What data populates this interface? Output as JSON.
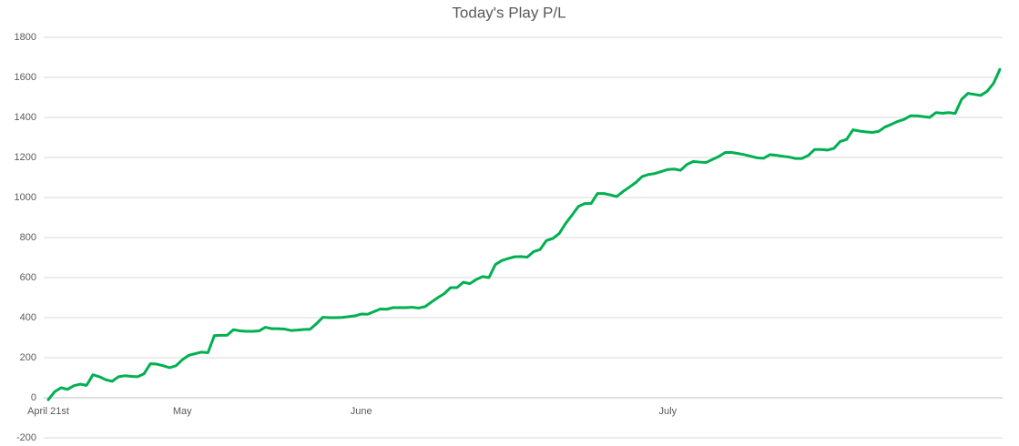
{
  "chart_data": {
    "type": "line",
    "title": "Today's Play P/L",
    "categories": [
      "April 21st",
      null,
      null,
      null,
      null,
      null,
      null,
      null,
      null,
      null,
      null,
      null,
      null,
      null,
      null,
      null,
      null,
      null,
      null,
      null,
      null,
      "May",
      null,
      null,
      null,
      null,
      null,
      null,
      null,
      null,
      null,
      null,
      null,
      null,
      null,
      null,
      null,
      null,
      null,
      null,
      null,
      null,
      null,
      null,
      null,
      null,
      null,
      null,
      null,
      "June",
      null,
      null,
      null,
      null,
      null,
      null,
      null,
      null,
      null,
      null,
      null,
      null,
      null,
      null,
      null,
      null,
      null,
      null,
      null,
      null,
      null,
      null,
      null,
      null,
      null,
      null,
      null,
      null,
      null,
      null,
      null,
      null,
      null,
      null,
      null,
      null,
      null,
      null,
      null,
      null,
      null,
      null,
      null,
      null,
      null,
      null,
      null,
      "July",
      null,
      null,
      null,
      null,
      null,
      null,
      null,
      null,
      null,
      null,
      null,
      null,
      null,
      null,
      null,
      null,
      null,
      null,
      null,
      null,
      null,
      null,
      null,
      null,
      null,
      null,
      null,
      null,
      null,
      null,
      null,
      null,
      null,
      null,
      null,
      null,
      null,
      null,
      null,
      null,
      null,
      null,
      null,
      null,
      null,
      null,
      null,
      null,
      null,
      null,
      null,
      null
    ],
    "series": [
      {
        "name": "P/L",
        "color": "#00b050",
        "values": [
          -10,
          30,
          50,
          42,
          60,
          68,
          62,
          115,
          105,
          90,
          82,
          105,
          110,
          107,
          105,
          120,
          170,
          168,
          160,
          150,
          160,
          190,
          212,
          220,
          228,
          225,
          310,
          312,
          312,
          340,
          334,
          332,
          332,
          334,
          352,
          345,
          345,
          343,
          336,
          338,
          341,
          342,
          370,
          402,
          400,
          400,
          401,
          405,
          409,
          418,
          417,
          430,
          443,
          442,
          450,
          450,
          450,
          452,
          448,
          455,
          478,
          500,
          520,
          550,
          550,
          577,
          570,
          590,
          605,
          600,
          665,
          685,
          695,
          704,
          705,
          702,
          730,
          740,
          785,
          795,
          820,
          870,
          912,
          955,
          970,
          970,
          1020,
          1020,
          1013,
          1005,
          1030,
          1052,
          1075,
          1105,
          1115,
          1120,
          1130,
          1140,
          1142,
          1136,
          1165,
          1180,
          1177,
          1175,
          1190,
          1205,
          1225,
          1225,
          1220,
          1214,
          1206,
          1198,
          1196,
          1214,
          1211,
          1206,
          1202,
          1195,
          1195,
          1210,
          1240,
          1240,
          1237,
          1245,
          1280,
          1290,
          1338,
          1332,
          1328,
          1325,
          1330,
          1352,
          1365,
          1380,
          1390,
          1408,
          1408,
          1404,
          1400,
          1424,
          1421,
          1424,
          1420,
          1490,
          1520,
          1515,
          1510,
          1530,
          1570,
          1640
        ]
      }
    ],
    "ylim": [
      -200,
      1800
    ],
    "yticks": [
      -200,
      0,
      200,
      400,
      600,
      800,
      1000,
      1200,
      1400,
      1600,
      1800
    ],
    "grid": true
  }
}
